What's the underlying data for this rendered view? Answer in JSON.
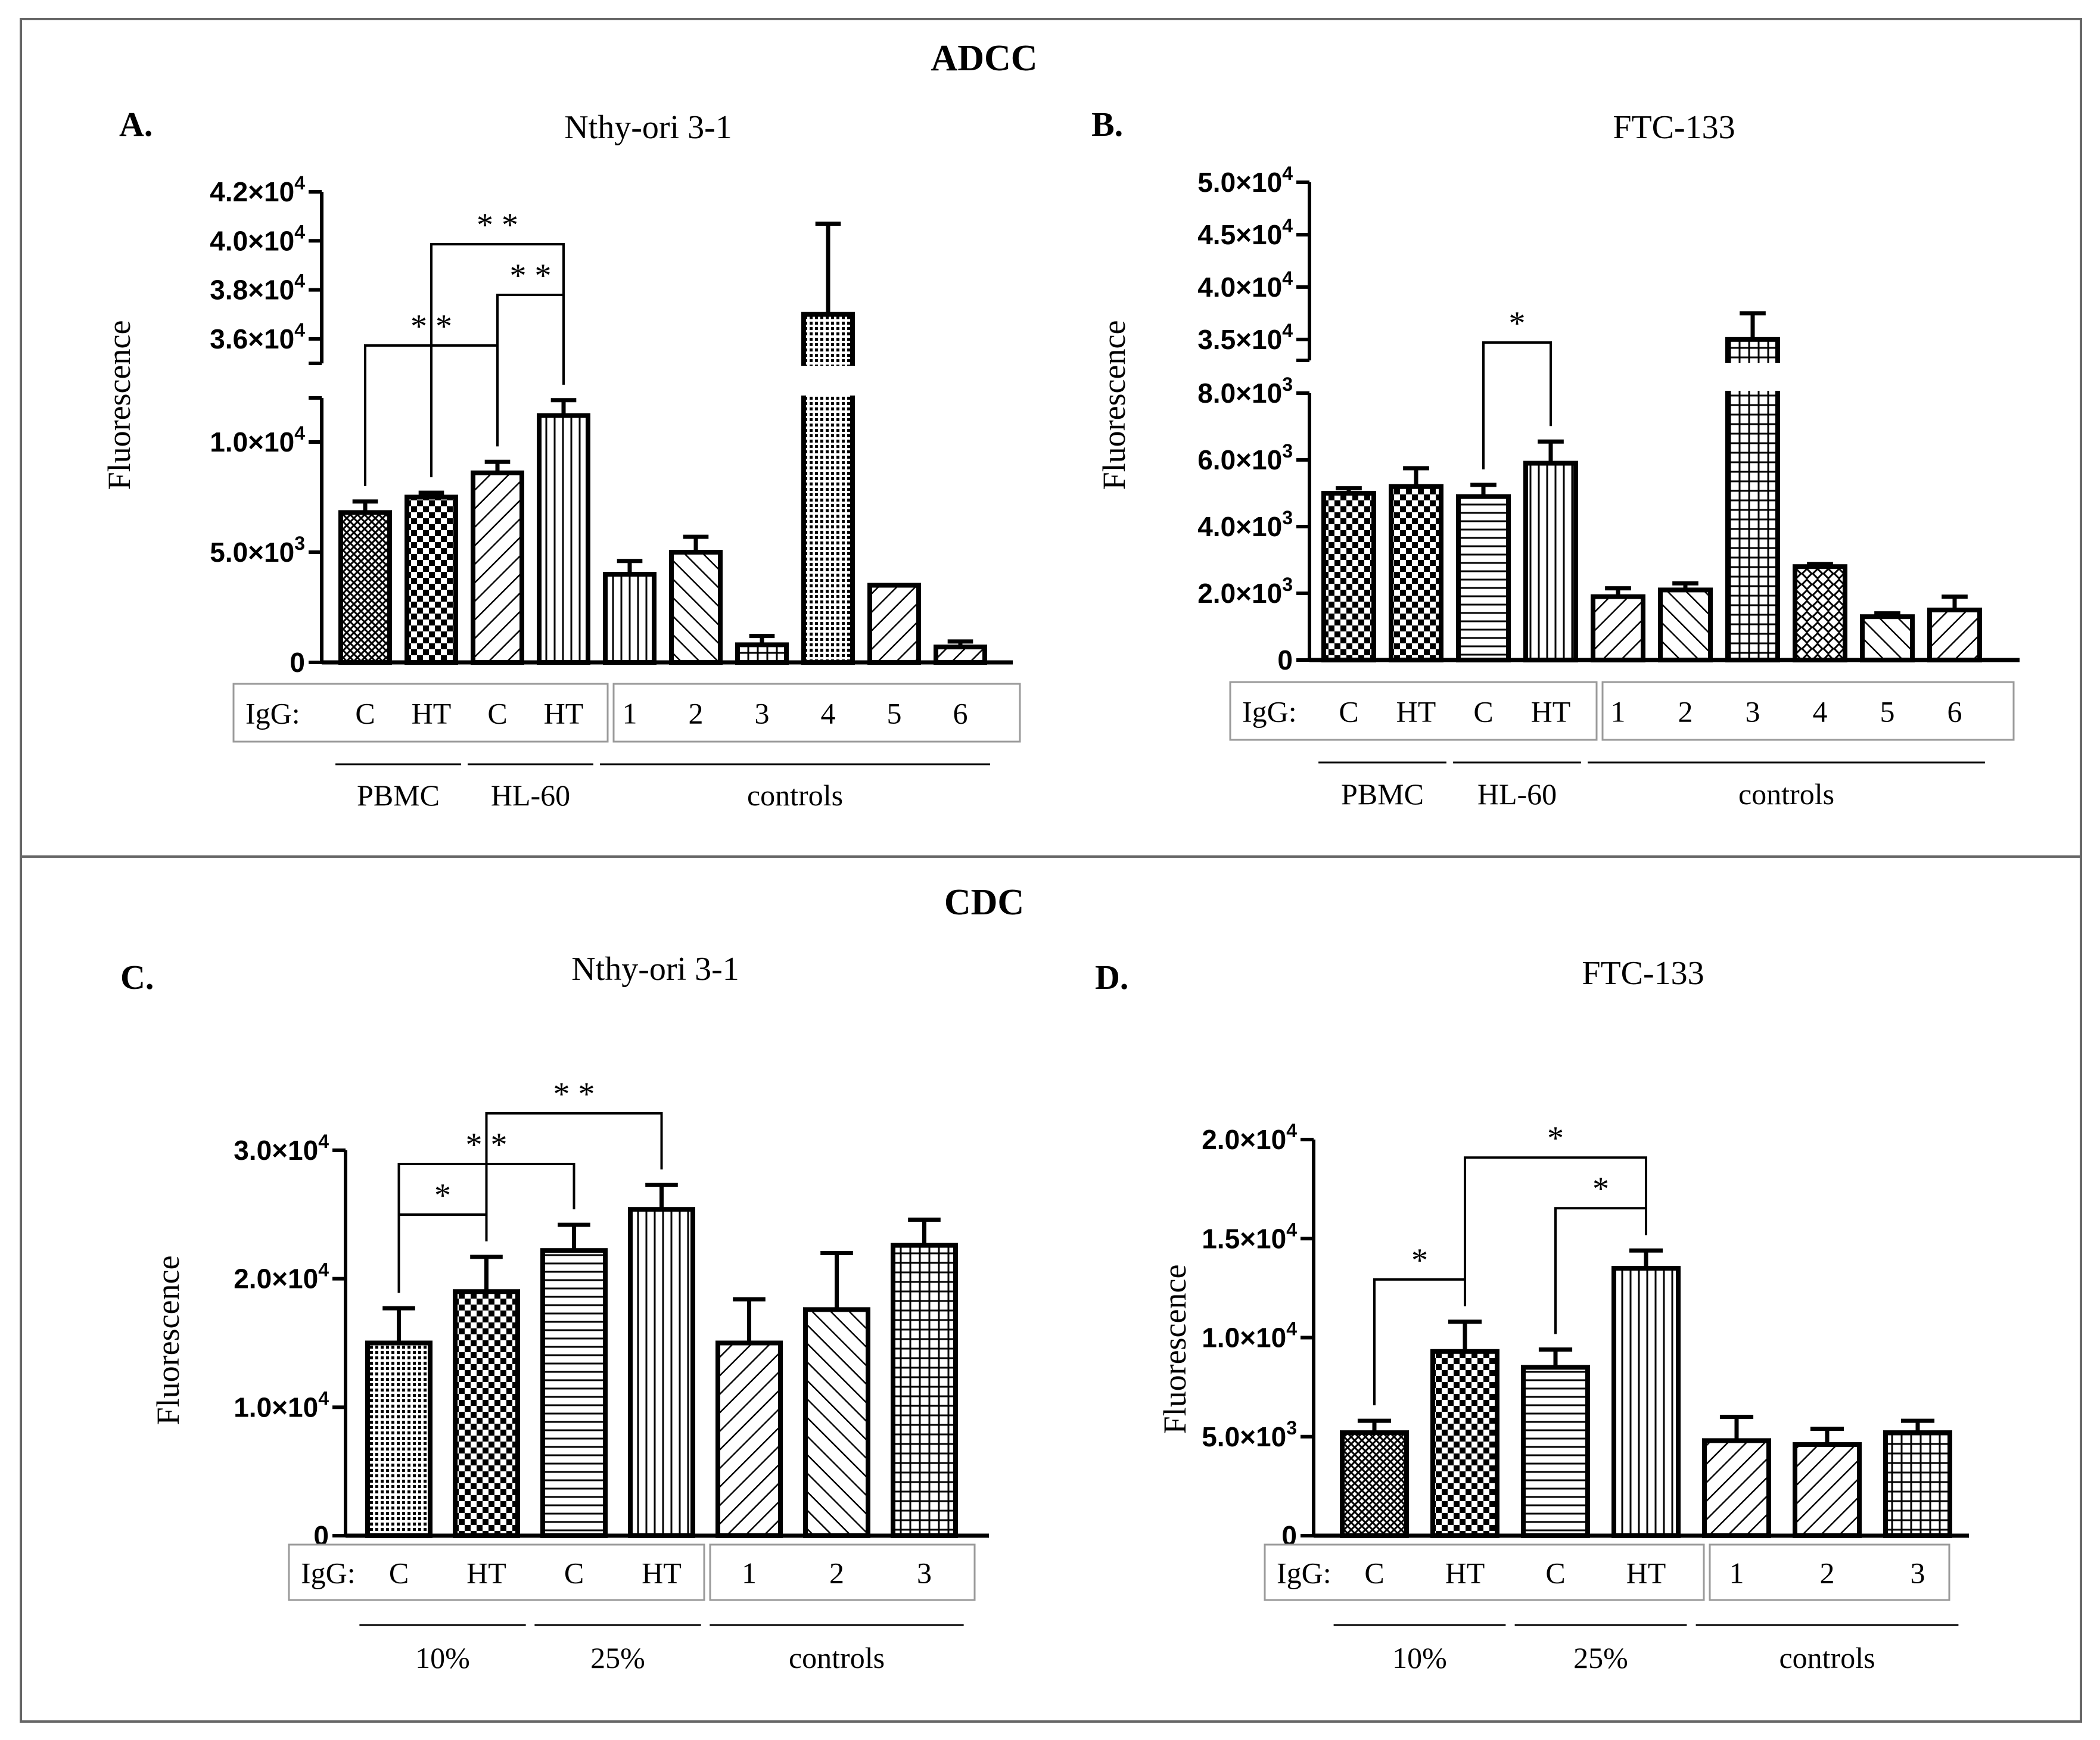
{
  "figure": {
    "sections": [
      {
        "id": "adcc",
        "title": "ADCC"
      },
      {
        "id": "cdc",
        "title": "CDC"
      }
    ]
  },
  "colors": {
    "frame": "#666666",
    "ink": "#000000",
    "box": "#9a9a9a",
    "background": "#ffffff"
  },
  "chart_data": [
    {
      "id": "A",
      "panel_label": "A.",
      "title": "Nthy-ori 3-1",
      "type": "bar",
      "ylabel": "Fluorescence",
      "broken_axis": true,
      "ylim_lower": [
        0,
        12000
      ],
      "ylim_upper": [
        35000,
        42000
      ],
      "yticks_lower": [
        {
          "v": 0,
          "label": "0"
        },
        {
          "v": 5000,
          "label": "5.0×10",
          "exp": "3"
        },
        {
          "v": 10000,
          "label": "1.0×10",
          "exp": "4"
        }
      ],
      "yticks_upper": [
        {
          "v": 36000,
          "label": "3.6×10",
          "exp": "4"
        },
        {
          "v": 38000,
          "label": "3.8×10",
          "exp": "4"
        },
        {
          "v": 40000,
          "label": "4.0×10",
          "exp": "4"
        },
        {
          "v": 42000,
          "label": "4.2×10",
          "exp": "4"
        }
      ],
      "igg_prefix": "IgG:",
      "categories": [
        "C",
        "HT",
        "C",
        "HT",
        "1",
        "2",
        "3",
        "4",
        "5",
        "6"
      ],
      "values": [
        6800,
        7500,
        8600,
        11200,
        4000,
        5000,
        800,
        37000,
        3500,
        700
      ],
      "errors": [
        500,
        200,
        500,
        700,
        600,
        700,
        400,
        3700,
        0,
        250
      ],
      "patterns": [
        "cross",
        "check",
        "hatch45",
        "vlines",
        "vlines",
        "hatch135",
        "grid",
        "dots",
        "hatch45",
        "hatch45"
      ],
      "groups": [
        {
          "label": "PBMC",
          "from": 0,
          "to": 1
        },
        {
          "label": "HL-60",
          "from": 2,
          "to": 3
        },
        {
          "label": "controls",
          "from": 4,
          "to": 9
        }
      ],
      "brackets": [
        {
          "from": 0,
          "to": 2,
          "label": "* *"
        },
        {
          "from": 2,
          "to": 3,
          "label": "* *"
        },
        {
          "from": 1,
          "to": 3,
          "label": "* *"
        }
      ]
    },
    {
      "id": "B",
      "panel_label": "B.",
      "title": "FTC-133",
      "type": "bar",
      "ylabel": "Fluorescence",
      "broken_axis": true,
      "ylim_lower": [
        0,
        8000
      ],
      "ylim_upper": [
        33000,
        50000
      ],
      "yticks_lower": [
        {
          "v": 0,
          "label": "0"
        },
        {
          "v": 2000,
          "label": "2.0×10",
          "exp": "3"
        },
        {
          "v": 4000,
          "label": "4.0×10",
          "exp": "3"
        },
        {
          "v": 6000,
          "label": "6.0×10",
          "exp": "3"
        },
        {
          "v": 8000,
          "label": "8.0×10",
          "exp": "3"
        }
      ],
      "yticks_upper": [
        {
          "v": 35000,
          "label": "3.5×10",
          "exp": "4"
        },
        {
          "v": 40000,
          "label": "4.0×10",
          "exp": "4"
        },
        {
          "v": 45000,
          "label": "4.5×10",
          "exp": "4"
        },
        {
          "v": 50000,
          "label": "5.0×10",
          "exp": "4"
        }
      ],
      "igg_prefix": "IgG:",
      "categories": [
        "C",
        "HT",
        "C",
        "HT",
        "1",
        "2",
        "3",
        "4",
        "5",
        "6"
      ],
      "values": [
        5000,
        5200,
        4900,
        5900,
        1900,
        2100,
        35000,
        2800,
        1300,
        1500
      ],
      "errors": [
        150,
        550,
        350,
        650,
        250,
        200,
        2500,
        80,
        100,
        400
      ],
      "patterns": [
        "check",
        "check",
        "hlines",
        "vlines",
        "hatch45",
        "hatch135",
        "grid",
        "diamond",
        "hatch135",
        "hatch45"
      ],
      "groups": [
        {
          "label": "PBMC",
          "from": 0,
          "to": 1
        },
        {
          "label": "HL-60",
          "from": 2,
          "to": 3
        },
        {
          "label": "controls",
          "from": 4,
          "to": 9
        }
      ],
      "brackets": [
        {
          "from": 2,
          "to": 3,
          "label": "*"
        }
      ]
    },
    {
      "id": "C",
      "panel_label": "C.",
      "title": "Nthy-ori 3-1",
      "type": "bar",
      "ylabel": "Fluorescence",
      "broken_axis": false,
      "ylim": [
        0,
        30000
      ],
      "yticks": [
        {
          "v": 0,
          "label": "0"
        },
        {
          "v": 10000,
          "label": "1.0×10",
          "exp": "4"
        },
        {
          "v": 20000,
          "label": "2.0×10",
          "exp": "4"
        },
        {
          "v": 30000,
          "label": "3.0×10",
          "exp": "4"
        }
      ],
      "igg_prefix": "IgG:",
      "categories": [
        "C",
        "HT",
        "C",
        "HT",
        "1",
        "2",
        "3"
      ],
      "values": [
        15000,
        19000,
        22200,
        25400,
        15000,
        17600,
        22600
      ],
      "errors": [
        2700,
        2700,
        2000,
        1900,
        3400,
        4400,
        2000
      ],
      "patterns": [
        "dots",
        "check",
        "hlines",
        "vlines",
        "hatch45",
        "hatch135",
        "grid"
      ],
      "groups": [
        {
          "label": "10%",
          "from": 0,
          "to": 1
        },
        {
          "label": "25%",
          "from": 2,
          "to": 3
        },
        {
          "label": "controls",
          "from": 4,
          "to": 6
        }
      ],
      "brackets": [
        {
          "from": 0,
          "to": 1,
          "label": "*"
        },
        {
          "from": 0,
          "to": 2,
          "label": "* *"
        },
        {
          "from": 1,
          "to": 3,
          "label": "* *"
        }
      ]
    },
    {
      "id": "D",
      "panel_label": "D.",
      "title": "FTC-133",
      "type": "bar",
      "ylabel": "Fluorescence",
      "broken_axis": false,
      "ylim": [
        0,
        20000
      ],
      "yticks": [
        {
          "v": 0,
          "label": "0"
        },
        {
          "v": 5000,
          "label": "5.0×10",
          "exp": "3"
        },
        {
          "v": 10000,
          "label": "1.0×10",
          "exp": "4"
        },
        {
          "v": 15000,
          "label": "1.5×10",
          "exp": "4"
        },
        {
          "v": 20000,
          "label": "2.0×10",
          "exp": "4"
        }
      ],
      "igg_prefix": "IgG:",
      "categories": [
        "C",
        "HT",
        "C",
        "HT",
        "1",
        "2",
        "3"
      ],
      "values": [
        5200,
        9300,
        8500,
        13500,
        4800,
        4600,
        5200
      ],
      "errors": [
        600,
        1500,
        900,
        900,
        1200,
        800,
        600
      ],
      "patterns": [
        "cross",
        "check",
        "hlines",
        "vlines",
        "hatch45",
        "hatch45",
        "grid"
      ],
      "groups": [
        {
          "label": "10%",
          "from": 0,
          "to": 1
        },
        {
          "label": "25%",
          "from": 2,
          "to": 3
        },
        {
          "label": "controls",
          "from": 4,
          "to": 6
        }
      ],
      "brackets": [
        {
          "from": 0,
          "to": 1,
          "label": "*"
        },
        {
          "from": 2,
          "to": 3,
          "label": "*"
        },
        {
          "from": 1,
          "to": 3,
          "label": "*"
        }
      ]
    }
  ]
}
